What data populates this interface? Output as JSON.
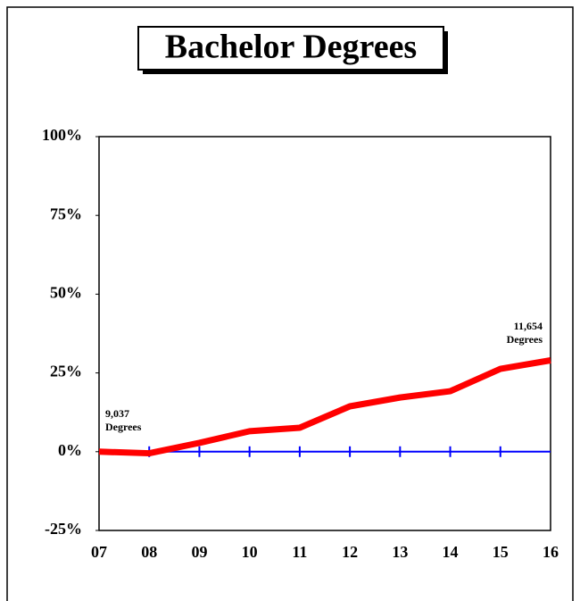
{
  "chart_data": {
    "type": "line",
    "title": "Bachelor Degrees",
    "categories": [
      "07",
      "08",
      "09",
      "10",
      "11",
      "12",
      "13",
      "14",
      "15",
      "16"
    ],
    "series": [
      {
        "name": "Bachelor Degrees",
        "color": "#ff0000",
        "values": [
          0,
          -0.5,
          2.8,
          6.5,
          7.6,
          14.4,
          17.2,
          19.2,
          26.3,
          29
        ]
      }
    ],
    "ylim": [
      -25,
      100
    ],
    "yticks": [
      {
        "value": -25,
        "label": "-25%"
      },
      {
        "value": 0,
        "label": "0%"
      },
      {
        "value": 25,
        "label": "25%"
      },
      {
        "value": 50,
        "label": "50%"
      },
      {
        "value": 75,
        "label": "75%"
      },
      {
        "value": 100,
        "label": "100%"
      }
    ],
    "reference_line": {
      "value": 0,
      "color": "#0000ff"
    },
    "annotations": [
      {
        "lines": [
          "9,037",
          "Degrees"
        ]
      },
      {
        "lines": [
          "11,654",
          "Degrees"
        ]
      }
    ]
  }
}
